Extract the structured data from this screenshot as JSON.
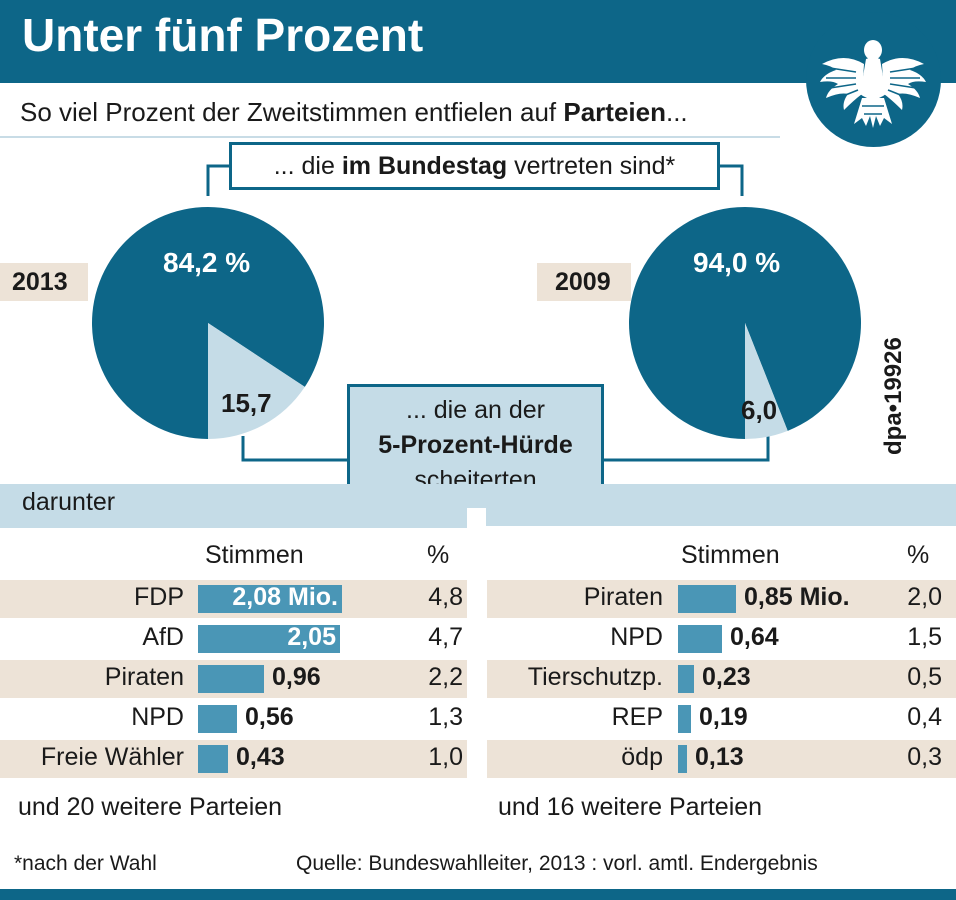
{
  "title": "Unter fünf Prozent",
  "subtitle_pre": "So viel Prozent der Zweitstimmen entfielen auf ",
  "subtitle_bold": "Parteien",
  "subtitle_post": "...",
  "box_top": {
    "pre": "... die ",
    "bold": "im Bundestag",
    "post": " vertreten sind*"
  },
  "box_mid": {
    "line1": "... die an der",
    "line2": "5-Prozent-Hürde",
    "line3": "scheiterten"
  },
  "darunter": "darunter",
  "credit": "dpa•19926",
  "chart_data": [
    {
      "type": "pie",
      "year": "2013",
      "slices": [
        {
          "label": "84,2 %",
          "value": 84.2,
          "category": "im Bundestag vertreten",
          "color": "#0d6688"
        },
        {
          "label": "15,7",
          "value": 15.7,
          "category": "an der 5-Prozent-Hürde gescheitert",
          "color": "#c5dce7"
        }
      ]
    },
    {
      "type": "pie",
      "year": "2009",
      "slices": [
        {
          "label": "94,0 %",
          "value": 94.0,
          "category": "im Bundestag vertreten",
          "color": "#0d6688"
        },
        {
          "label": "6,0",
          "value": 6.0,
          "category": "an der 5-Prozent-Hürde gescheitert",
          "color": "#c5dce7"
        }
      ]
    },
    {
      "type": "bar",
      "year": "2013",
      "col_votes": "Stimmen",
      "col_pct": "%",
      "rows": [
        {
          "party": "FDP",
          "votes": 2.08,
          "votes_label": "2,08 Mio.",
          "pct": "4,8"
        },
        {
          "party": "AfD",
          "votes": 2.05,
          "votes_label": "2,05",
          "pct": "4,7"
        },
        {
          "party": "Piraten",
          "votes": 0.96,
          "votes_label": "0,96",
          "pct": "2,2"
        },
        {
          "party": "NPD",
          "votes": 0.56,
          "votes_label": "0,56",
          "pct": "1,3"
        },
        {
          "party": "Freie Wähler",
          "votes": 0.43,
          "votes_label": "0,43",
          "pct": "1,0"
        }
      ],
      "footer": "und 20 weitere Parteien"
    },
    {
      "type": "bar",
      "year": "2009",
      "col_votes": "Stimmen",
      "col_pct": "%",
      "rows": [
        {
          "party": "Piraten",
          "votes": 0.85,
          "votes_label": "0,85 Mio.",
          "pct": "2,0"
        },
        {
          "party": "NPD",
          "votes": 0.64,
          "votes_label": "0,64",
          "pct": "1,5"
        },
        {
          "party": "Tierschutzp.",
          "votes": 0.23,
          "votes_label": "0,23",
          "pct": "0,5"
        },
        {
          "party": "REP",
          "votes": 0.19,
          "votes_label": "0,19",
          "pct": "0,4"
        },
        {
          "party": "ödp",
          "votes": 0.13,
          "votes_label": "0,13",
          "pct": "0,3"
        }
      ],
      "footer": "und 16 weitere Parteien"
    }
  ],
  "footnote": "*nach der Wahl",
  "source": "Quelle: Bundeswahlleiter, 2013 : vorl. amtl. Endergebnis",
  "colors": {
    "primary": "#0d6688",
    "bar": "#4a96b6",
    "light": "#c5dce7",
    "beige": "#ede3d7"
  }
}
